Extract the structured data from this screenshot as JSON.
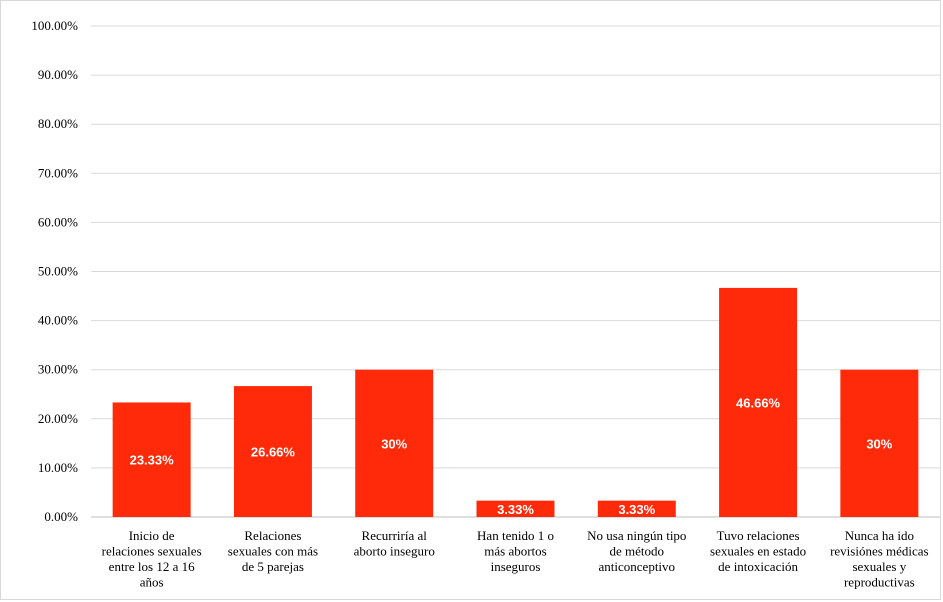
{
  "chart_data": {
    "type": "bar",
    "categories": [
      [
        "Inicio de",
        "relaciones sexuales",
        "entre los 12 a 16",
        "años"
      ],
      [
        "Relaciones",
        "sexuales con más",
        "de 5 parejas"
      ],
      [
        "Recurriría al",
        "aborto inseguro"
      ],
      [
        "Han tenido 1 o",
        "más abortos",
        "inseguros"
      ],
      [
        "No usa ningún tipo",
        "de método",
        "anticonceptivo"
      ],
      [
        "Tuvo relaciones",
        "sexuales en estado",
        "de intoxicación"
      ],
      [
        "Nunca ha ido",
        "revisiónes médicas",
        "sexuales y",
        "reproductivas"
      ]
    ],
    "values": [
      23.33,
      26.66,
      30,
      3.33,
      3.33,
      46.66,
      30
    ],
    "data_labels": [
      "23.33%",
      "26.66%",
      "30%",
      "3.33%",
      "3.33%",
      "46.66%",
      "30%"
    ],
    "y_ticks": [
      0,
      10,
      20,
      30,
      40,
      50,
      60,
      70,
      80,
      90,
      100
    ],
    "y_tick_labels": [
      "0.00%",
      "10.00%",
      "20.00%",
      "30.00%",
      "40.00%",
      "50.00%",
      "60.00%",
      "70.00%",
      "80.00%",
      "90.00%",
      "100.00%"
    ],
    "ylim": [
      0,
      100
    ],
    "grid": true,
    "legend": "none",
    "title": "",
    "xlabel": "",
    "ylabel": "",
    "colors": {
      "bar": "#FF2A0A",
      "grid": "#d9d9d9",
      "axis": "#bfbfbf",
      "label": "#ffffff"
    }
  }
}
